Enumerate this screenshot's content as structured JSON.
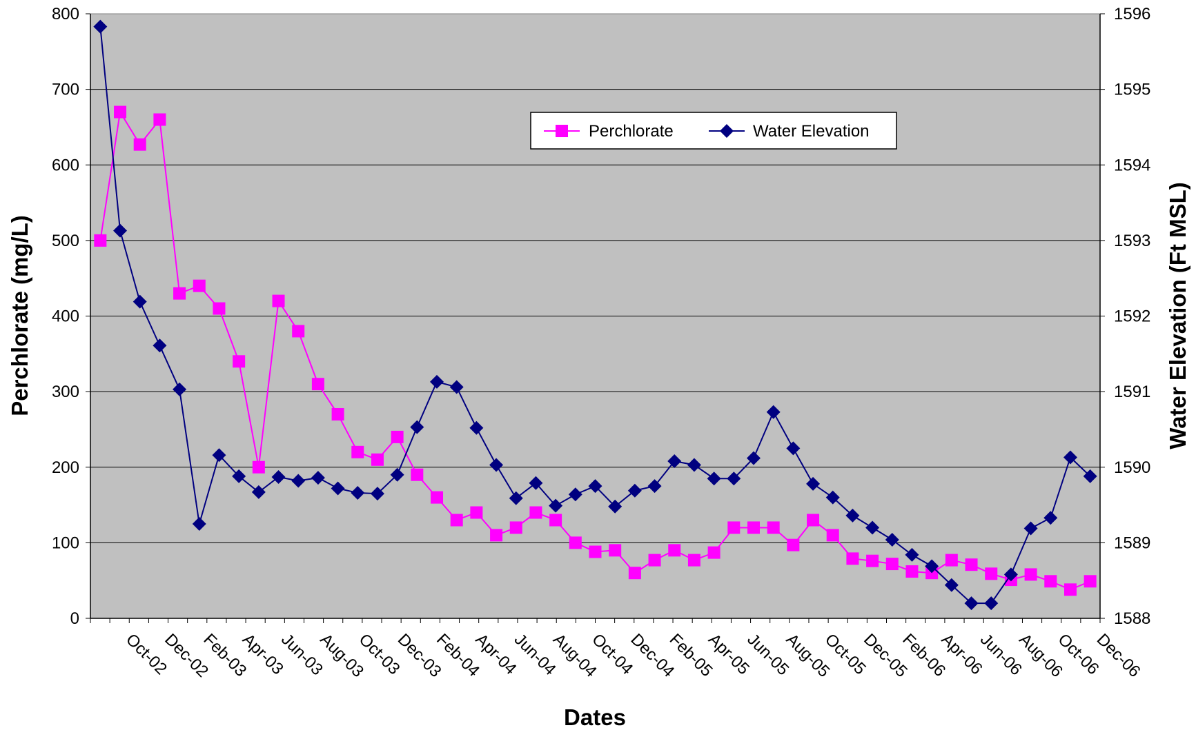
{
  "chart_data": {
    "type": "line",
    "x_label": "Dates",
    "y_left_label": "Perchlorate (mg/L)",
    "y_right_label": "Water Elevation (Ft MSL)",
    "x_tick_labels": [
      "Oct-02",
      "Dec-02",
      "Feb-03",
      "Apr-03",
      "Jun-03",
      "Aug-03",
      "Oct-03",
      "Dec-03",
      "Feb-04",
      "Apr-04",
      "Jun-04",
      "Aug-04",
      "Oct-04",
      "Dec-04",
      "Feb-05",
      "Apr-05",
      "Jun-05",
      "Aug-05",
      "Oct-05",
      "Dec-05",
      "Feb-06",
      "Apr-06",
      "Jun-06",
      "Aug-06",
      "Oct-06",
      "Dec-06"
    ],
    "x_range": [
      "Aug-02",
      "Dec-06"
    ],
    "y_left_range": [
      0,
      800
    ],
    "y_left_ticks": [
      0,
      100,
      200,
      300,
      400,
      500,
      600,
      700,
      800
    ],
    "y_right_range": [
      1588,
      1596
    ],
    "y_right_ticks": [
      1588,
      1589,
      1590,
      1591,
      1592,
      1593,
      1594,
      1595,
      1596
    ],
    "plot_background": "#C0C0C0",
    "grid": "horizontal",
    "legend_position": "top-center",
    "series": [
      {
        "name": "Perchlorate",
        "axis": "left",
        "color": "#FF00FF",
        "marker": "square",
        "values": [
          500,
          670,
          627,
          660,
          430,
          440,
          410,
          340,
          200,
          420,
          380,
          310,
          270,
          220,
          210,
          240,
          190,
          160,
          130,
          140,
          110,
          120,
          140,
          130,
          100,
          88,
          90,
          60,
          77,
          90,
          77,
          87,
          120,
          120,
          120,
          97,
          130,
          110,
          79,
          76,
          72,
          62,
          60,
          77,
          71,
          59,
          51,
          58,
          49,
          38,
          49
        ]
      },
      {
        "name": "Water Elevation",
        "axis": "right",
        "color": "#000080",
        "marker": "diamond",
        "values": [
          1595.83,
          1593.13,
          1592.19,
          1591.61,
          1591.03,
          1589.25,
          1590.16,
          1589.88,
          1589.67,
          1589.87,
          1589.82,
          1589.86,
          1589.72,
          1589.66,
          1589.65,
          1589.9,
          1590.53,
          1591.13,
          1591.06,
          1590.52,
          1590.03,
          1589.59,
          1589.79,
          1589.49,
          1589.64,
          1589.75,
          1589.48,
          1589.69,
          1589.75,
          1590.08,
          1590.03,
          1589.85,
          1589.85,
          1590.12,
          1590.73,
          1590.25,
          1589.78,
          1589.6,
          1589.36,
          1589.2,
          1589.04,
          1588.84,
          1588.69,
          1588.44,
          1588.2,
          1588.2,
          1588.58,
          1589.19,
          1589.33,
          1590.13,
          1589.88
        ]
      }
    ]
  }
}
